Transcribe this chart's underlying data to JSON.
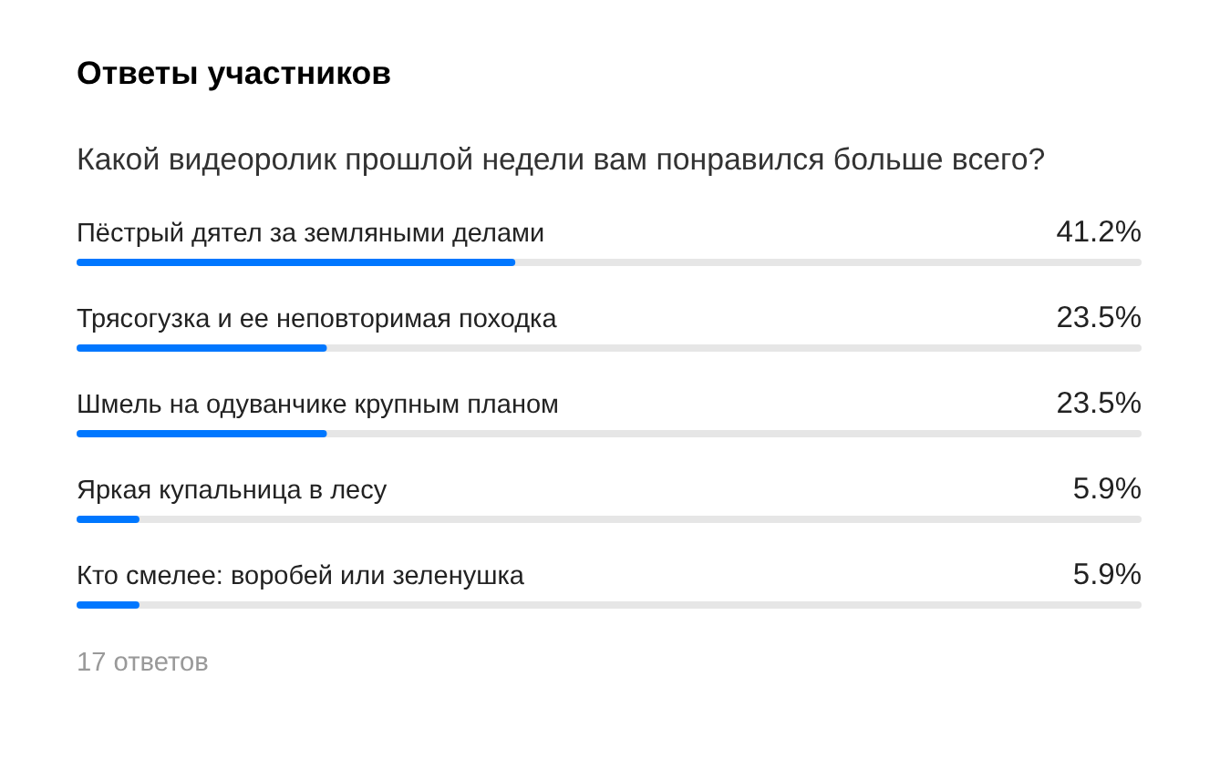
{
  "chart_data": {
    "type": "bar",
    "orientation": "horizontal",
    "title": "Ответы участников",
    "subtitle": "Какой видеоролик прошлой недели вам понравился больше всего?",
    "categories": [
      "Пёстрый дятел за земляными делами",
      "Трясогузка и ее неповторимая походка",
      "Шмель на одуванчике крупным планом",
      "Яркая купальница в лесу",
      "Кто смелее: воробей или зеленушка"
    ],
    "values": [
      41.2,
      23.5,
      23.5,
      5.9,
      5.9
    ],
    "color": "#0077ff",
    "xlim": [
      0,
      100
    ],
    "value_labels": [
      "41.2%",
      "23.5%",
      "23.5%",
      "5.9%",
      "5.9%"
    ],
    "tick_labels": "y",
    "annotations": [
      "17 ответов"
    ]
  }
}
